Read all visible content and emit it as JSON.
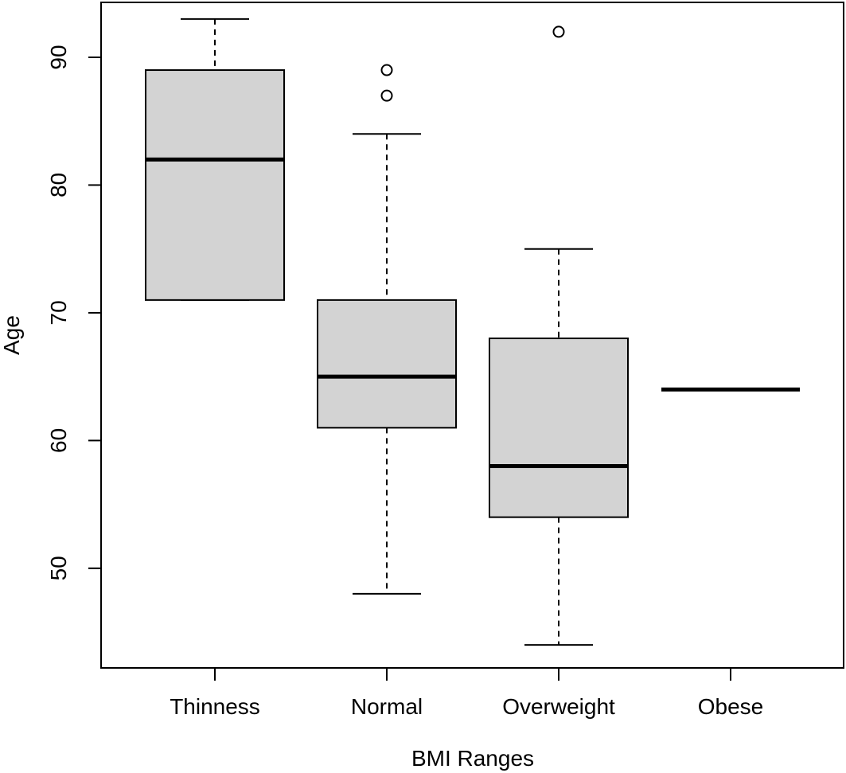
{
  "chart_data": {
    "type": "boxplot",
    "title": "",
    "xlabel": "BMI Ranges",
    "ylabel": "Age",
    "ylim": [
      42.2,
      94.3
    ],
    "yticks": [
      50,
      60,
      70,
      80,
      90
    ],
    "grid": false,
    "legend": "none",
    "categories": [
      "Thinness",
      "Normal",
      "Overweight",
      "Obese"
    ],
    "boxes": [
      {
        "category": "Thinness",
        "whisker_low": 71,
        "q1": 71,
        "median": 82,
        "q3": 89,
        "whisker_high": 93,
        "outliers": []
      },
      {
        "category": "Normal",
        "whisker_low": 48,
        "q1": 61,
        "median": 65,
        "q3": 71,
        "whisker_high": 84,
        "outliers": [
          87,
          89
        ]
      },
      {
        "category": "Overweight",
        "whisker_low": 44,
        "q1": 54,
        "median": 58,
        "q3": 68,
        "whisker_high": 75,
        "outliers": [
          92
        ]
      },
      {
        "category": "Obese",
        "whisker_low": 64,
        "q1": 64,
        "median": 64,
        "q3": 64,
        "whisker_high": 64,
        "outliers": []
      }
    ],
    "colors": {
      "box_fill": "#d3d3d3",
      "stroke": "#000000"
    }
  }
}
